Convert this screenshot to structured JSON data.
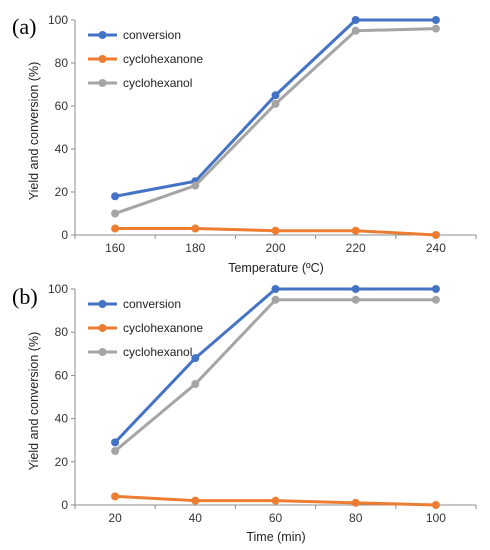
{
  "colors": {
    "conversion": "#4472c4",
    "cyclohexanone": "#ed7d31",
    "cyclohexanol": "#a5a5a5",
    "axis": "#8c8c8c"
  },
  "chart_data": [
    {
      "panel_label": "(a)",
      "type": "line",
      "x": [
        160,
        180,
        200,
        220,
        240
      ],
      "xlabel": "Temperature (ºC)",
      "ylabel": "Yield and conversion (%)",
      "ylim": [
        0,
        100
      ],
      "yticks": [
        0,
        20,
        40,
        60,
        80,
        100
      ],
      "xtick_labels": [
        "160",
        "180",
        "200",
        "220",
        "240"
      ],
      "ytick_labels": [
        "0",
        "20",
        "40",
        "60",
        "80",
        "100"
      ],
      "grid": false,
      "legend_position": "top-left",
      "series": [
        {
          "name": "conversion",
          "values": [
            18,
            25,
            65,
            100,
            100
          ]
        },
        {
          "name": "cyclohexanone",
          "values": [
            3,
            3,
            2,
            2,
            0
          ]
        },
        {
          "name": "cyclohexanol",
          "values": [
            10,
            23,
            61,
            95,
            96
          ]
        }
      ]
    },
    {
      "panel_label": "(b)",
      "type": "line",
      "x": [
        20,
        40,
        60,
        80,
        100
      ],
      "xlabel": "Time (min)",
      "ylabel": "Yield and conversion (%)",
      "ylim": [
        0,
        100
      ],
      "yticks": [
        0,
        20,
        40,
        60,
        80,
        100
      ],
      "xtick_labels": [
        "20",
        "40",
        "60",
        "80",
        "100"
      ],
      "ytick_labels": [
        "0",
        "20",
        "40",
        "60",
        "80",
        "100"
      ],
      "grid": false,
      "legend_position": "top-left",
      "series": [
        {
          "name": "conversion",
          "values": [
            29,
            68,
            100,
            100,
            100
          ]
        },
        {
          "name": "cyclohexanone",
          "values": [
            4,
            2,
            2,
            1,
            0
          ]
        },
        {
          "name": "cyclohexanol",
          "values": [
            25,
            56,
            95,
            95,
            95
          ]
        }
      ]
    }
  ]
}
